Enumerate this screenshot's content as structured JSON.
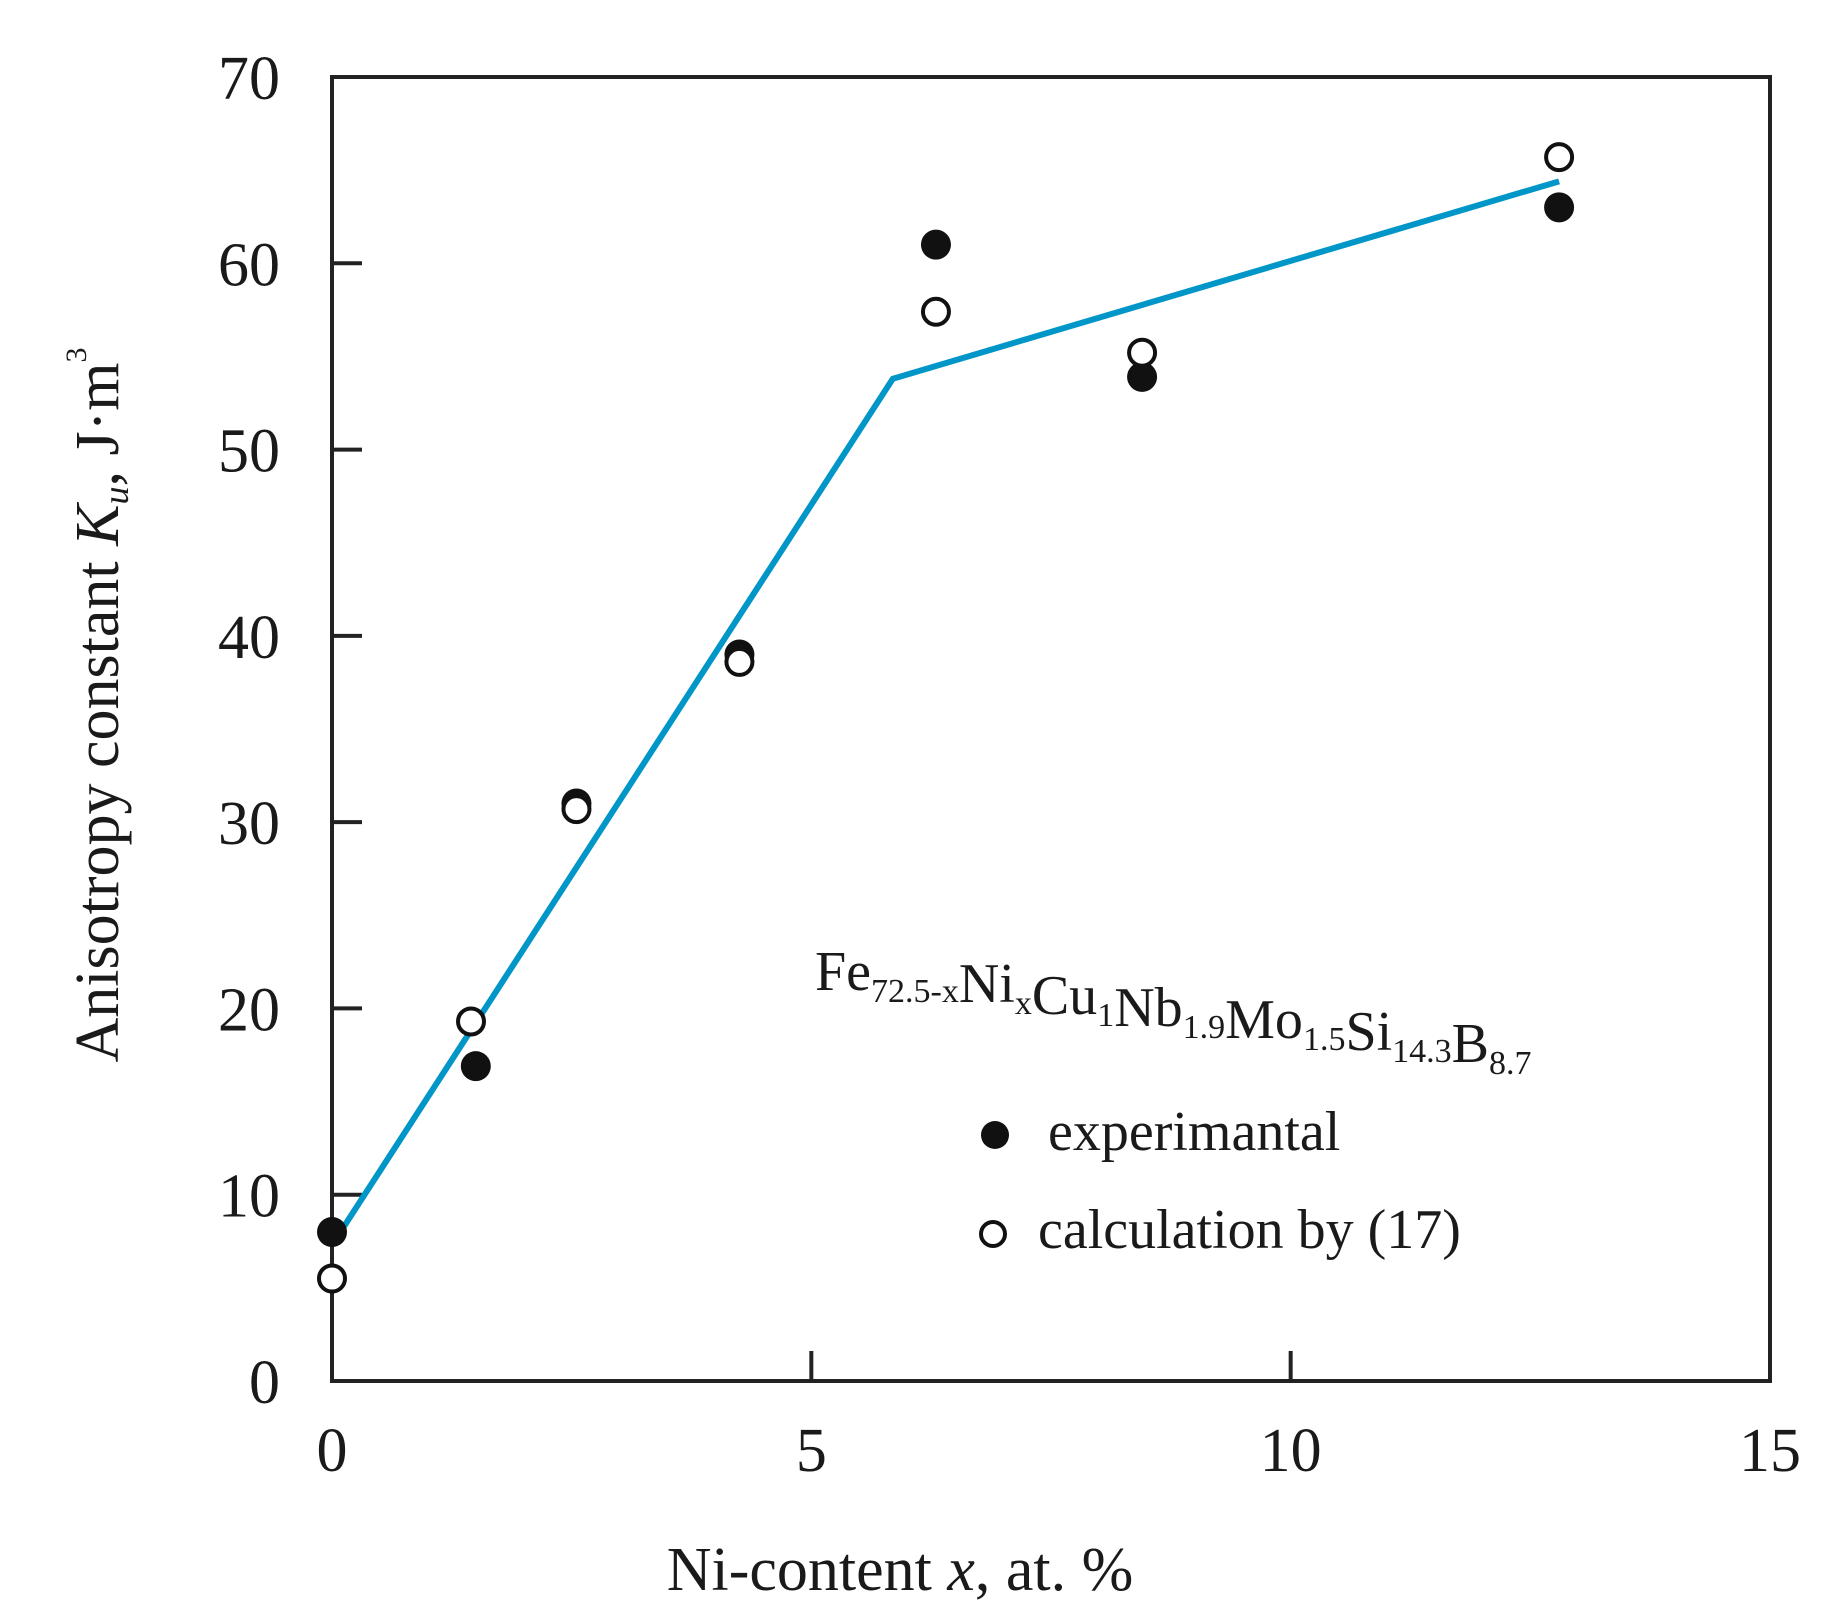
{
  "chart_data": {
    "type": "scatter",
    "title": "",
    "xlabel": "Ni-content x, at. %",
    "ylabel": "Anisotropy constant K_u, J·m^3",
    "xlim": [
      0,
      15
    ],
    "ylim": [
      0,
      70
    ],
    "x_ticks": [
      0,
      5,
      10,
      15
    ],
    "y_ticks": [
      0,
      10,
      20,
      30,
      40,
      50,
      60,
      70
    ],
    "grid": false,
    "annotation": "Fe72.5-xNixCu1Nb1.9Mo1.5Si14.3B8.7",
    "legend_position": "inside lower right",
    "series": [
      {
        "name": "experimantal",
        "marker": "filled-circle",
        "color": "#111111",
        "x": [
          0,
          1.5,
          2.55,
          4.25,
          6.3,
          8.45,
          12.8
        ],
        "y": [
          8.0,
          16.9,
          31.0,
          39.0,
          61.0,
          53.9,
          63.0
        ]
      },
      {
        "name": "calculation by (17)",
        "marker": "open-circle",
        "color": "#111111",
        "x": [
          0,
          1.45,
          2.55,
          4.25,
          6.3,
          8.45,
          12.8
        ],
        "y": [
          5.5,
          19.3,
          30.7,
          38.6,
          57.4,
          55.2,
          65.7
        ]
      },
      {
        "name": "fit line",
        "marker": "line",
        "color": "#0096c8",
        "x": [
          0,
          5.85,
          12.8
        ],
        "y": [
          7.3,
          53.8,
          64.4
        ]
      }
    ]
  },
  "labels": {
    "xlabel_main": "Ni-content ",
    "xlabel_var": "x",
    "xlabel_rest": ", at. %",
    "ylabel_main": "Anisotropy constant ",
    "ylabel_var": "K",
    "ylabel_sub": "u",
    "ylabel_rest": ", J·m",
    "ylabel_sup": "3",
    "legend_exp": "experimantal",
    "legend_calc": "calculation by (17)"
  },
  "formula": [
    {
      "t": "Fe",
      "s": "72.5-x"
    },
    {
      "t": "Ni",
      "s": "x"
    },
    {
      "t": "Cu",
      "s": "1"
    },
    {
      "t": "Nb",
      "s": "1.9"
    },
    {
      "t": "Mo",
      "s": "1.5"
    },
    {
      "t": "Si",
      "s": "14.3"
    },
    {
      "t": "B",
      "s": "8.7"
    }
  ]
}
